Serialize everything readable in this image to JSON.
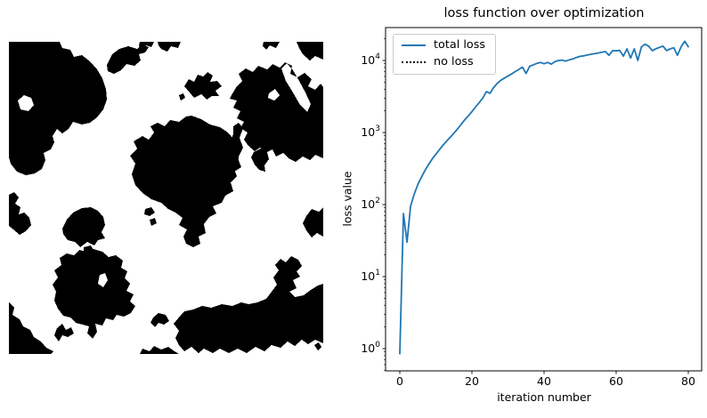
{
  "figure": {
    "background": "#ffffff",
    "left_panel": {
      "name": "binary-mask-image",
      "foreground_color": "#000000",
      "background_color": "#ffffff"
    }
  },
  "chart_data": {
    "type": "line",
    "title": "loss function over optimization",
    "xlabel": "iteration number",
    "ylabel": "loss value",
    "yscale": "log",
    "grid": false,
    "xlim": [
      -4,
      84
    ],
    "ylim": [
      0.49,
      28600
    ],
    "x_ticks": [
      0,
      20,
      40,
      60,
      80
    ],
    "y_tick_exponents": [
      0,
      1,
      2,
      3,
      4
    ],
    "axis_color": "#000000",
    "legend": {
      "position": "upper left",
      "entries": [
        {
          "label": "total loss",
          "style": "solid",
          "color": "#1f77b4"
        },
        {
          "label": "no loss",
          "style": "dotted",
          "color": "#000000"
        }
      ]
    },
    "series": [
      {
        "name": "total loss",
        "color": "#1f77b4",
        "x_start": 0,
        "x_step": 1,
        "values": [
          0.85,
          75,
          30,
          95,
          140,
          190,
          240,
          300,
          360,
          430,
          500,
          580,
          670,
          760,
          860,
          980,
          1120,
          1300,
          1500,
          1700,
          1950,
          2250,
          2600,
          3000,
          3700,
          3500,
          4200,
          4800,
          5300,
          5700,
          6100,
          6500,
          7000,
          7500,
          8100,
          6600,
          8300,
          8700,
          9100,
          9400,
          9000,
          9400,
          8900,
          9600,
          10000,
          10100,
          9800,
          10200,
          10500,
          11000,
          11400,
          11600,
          11900,
          12200,
          12400,
          12700,
          13000,
          13300,
          11800,
          13700,
          13600,
          13800,
          11500,
          14500,
          10800,
          14500,
          10000,
          15400,
          16800,
          15800,
          13700,
          14500,
          15200,
          15800,
          13700,
          14500,
          15000,
          11800,
          15500,
          18500,
          15500
        ]
      },
      {
        "name": "no loss",
        "color": "#000000",
        "values": []
      }
    ]
  }
}
